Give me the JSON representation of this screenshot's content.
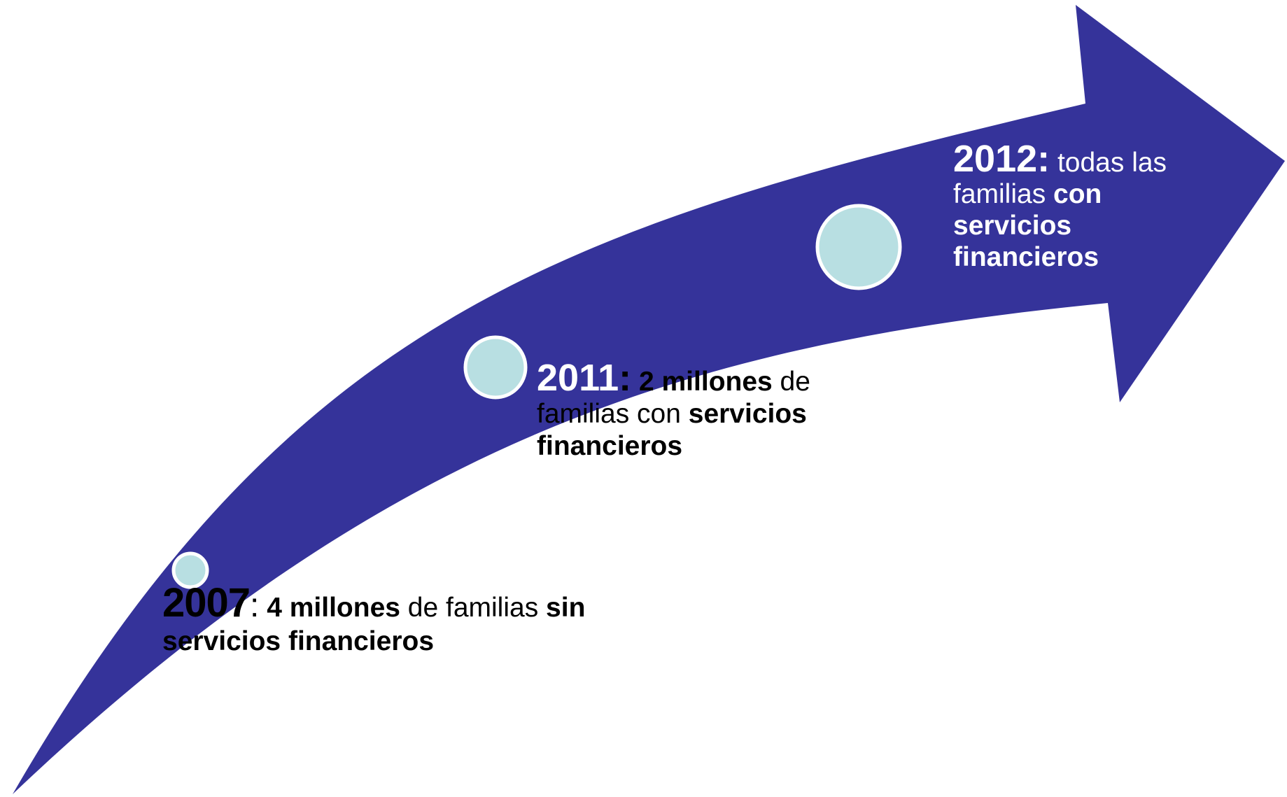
{
  "colors": {
    "arrow": "#35339a",
    "circle_fill": "#b8dfe2",
    "circle_stroke": "#ffffff",
    "text_dark": "#000000",
    "text_light": "#ffffff"
  },
  "milestones": [
    {
      "year": "2007",
      "sep": ":",
      "t1": " ",
      "b1": "4 millones",
      "t2": " de familias ",
      "b2": "sin servicios financieros",
      "t3": ""
    },
    {
      "year": "2011",
      "sep": ":",
      "t1": " ",
      "b1": "2 millones",
      "t2": " de familias con ",
      "b2": "servicios financieros",
      "t3": ""
    },
    {
      "year": "2012:",
      "sep": "",
      "t1": " todas las familias ",
      "b1": "con servicios financieros",
      "t2": "",
      "b2": "",
      "t3": ""
    }
  ]
}
